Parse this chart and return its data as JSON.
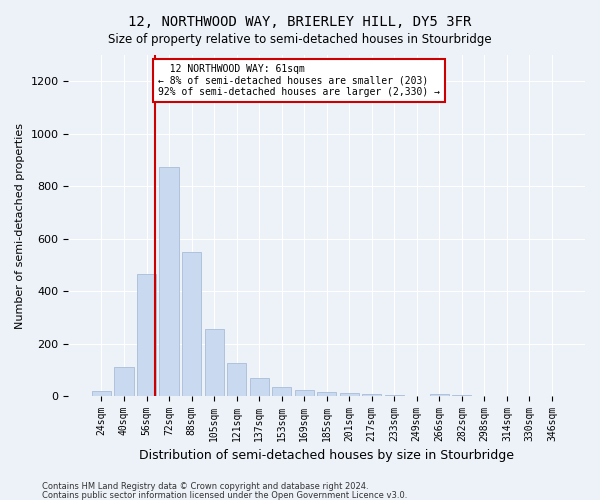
{
  "title": "12, NORTHWOOD WAY, BRIERLEY HILL, DY5 3FR",
  "subtitle": "Size of property relative to semi-detached houses in Stourbridge",
  "xlabel": "Distribution of semi-detached houses by size in Stourbridge",
  "ylabel": "Number of semi-detached properties",
  "bar_labels": [
    "24sqm",
    "40sqm",
    "56sqm",
    "72sqm",
    "88sqm",
    "105sqm",
    "121sqm",
    "137sqm",
    "153sqm",
    "169sqm",
    "185sqm",
    "201sqm",
    "217sqm",
    "233sqm",
    "249sqm",
    "266sqm",
    "282sqm",
    "298sqm",
    "314sqm",
    "330sqm",
    "346sqm"
  ],
  "bar_values": [
    18,
    110,
    465,
    875,
    550,
    255,
    125,
    70,
    35,
    25,
    15,
    12,
    8,
    5,
    0,
    8,
    5,
    0,
    0,
    0,
    0
  ],
  "bar_color": "#c9d9f0",
  "bar_edge_color": "#a8bcd8",
  "vline_pos": 2.38,
  "vline_label": "12 NORTHWOOD WAY: 61sqm",
  "pct_smaller": "8% of semi-detached houses are smaller (203)",
  "pct_larger": "92% of semi-detached houses are larger (2,330)",
  "annotation_box_color": "#cc0000",
  "ylim": [
    0,
    1300
  ],
  "yticks": [
    0,
    200,
    400,
    600,
    800,
    1000,
    1200
  ],
  "footer1": "Contains HM Land Registry data © Crown copyright and database right 2024.",
  "footer2": "Contains public sector information licensed under the Open Government Licence v3.0.",
  "bg_color": "#edf2f9",
  "plot_bg_color": "#edf2f9"
}
